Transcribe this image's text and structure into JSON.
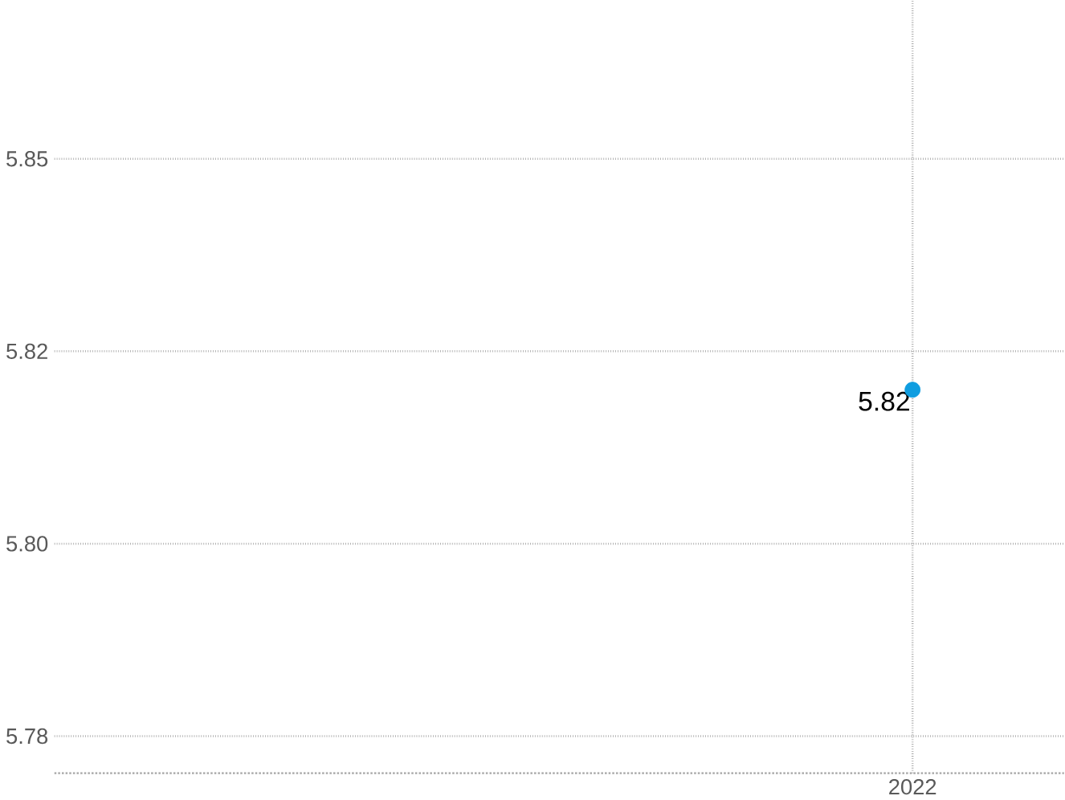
{
  "chart_data": {
    "type": "scatter",
    "categories": [
      "2022"
    ],
    "values": [
      5.82
    ],
    "color": "#0f9de0",
    "marker": "circle",
    "data_labels": true,
    "grid": true,
    "ylim": [
      5.7702,
      5.8705
    ],
    "yticks": [
      {
        "value": 5.775,
        "label": "5.78"
      },
      {
        "value": 5.8,
        "label": "5.80"
      },
      {
        "value": 5.825,
        "label": "5.82"
      },
      {
        "value": 5.85,
        "label": "5.85"
      }
    ]
  }
}
